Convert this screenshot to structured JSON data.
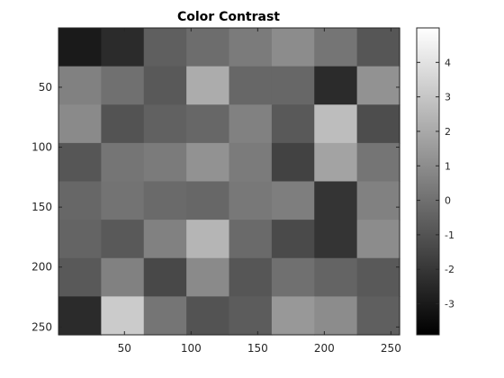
{
  "chart_data": {
    "type": "heatmap",
    "title": "Color Contrast",
    "colormap": "gray",
    "xlim": [
      0.5,
      256.5
    ],
    "ylim": [
      0.5,
      256.5
    ],
    "x_ticks": [
      50,
      100,
      150,
      200,
      250
    ],
    "y_ticks": [
      50,
      100,
      150,
      200,
      250
    ],
    "grid": {
      "rows": 8,
      "cols": 8,
      "values": [
        [
          -3.0,
          -2.4,
          -0.6,
          -0.1,
          0.4,
          1.0,
          0.2,
          -0.9
        ],
        [
          0.6,
          0.0,
          -0.8,
          2.1,
          -0.3,
          -0.3,
          -2.4,
          1.2
        ],
        [
          0.9,
          -1.0,
          -0.5,
          -0.3,
          0.6,
          -0.8,
          2.7,
          -1.2
        ],
        [
          -0.9,
          0.2,
          0.4,
          1.2,
          0.4,
          -1.6,
          1.8,
          0.2
        ],
        [
          -0.3,
          0.1,
          -0.2,
          -0.3,
          0.3,
          0.5,
          -2.1,
          0.6
        ],
        [
          -0.4,
          -0.8,
          0.6,
          2.4,
          -0.2,
          -1.3,
          -2.1,
          1.0
        ],
        [
          -0.8,
          0.6,
          -1.4,
          0.9,
          -0.9,
          0.0,
          -0.4,
          -0.8
        ],
        [
          -2.4,
          3.2,
          0.2,
          -1.0,
          -0.7,
          1.4,
          1.0,
          -0.6
        ]
      ]
    },
    "colorbar": {
      "lim": [
        -3.9,
        5.0
      ],
      "ticks": [
        -3,
        -2,
        -1,
        0,
        1,
        2,
        3,
        4
      ]
    }
  }
}
